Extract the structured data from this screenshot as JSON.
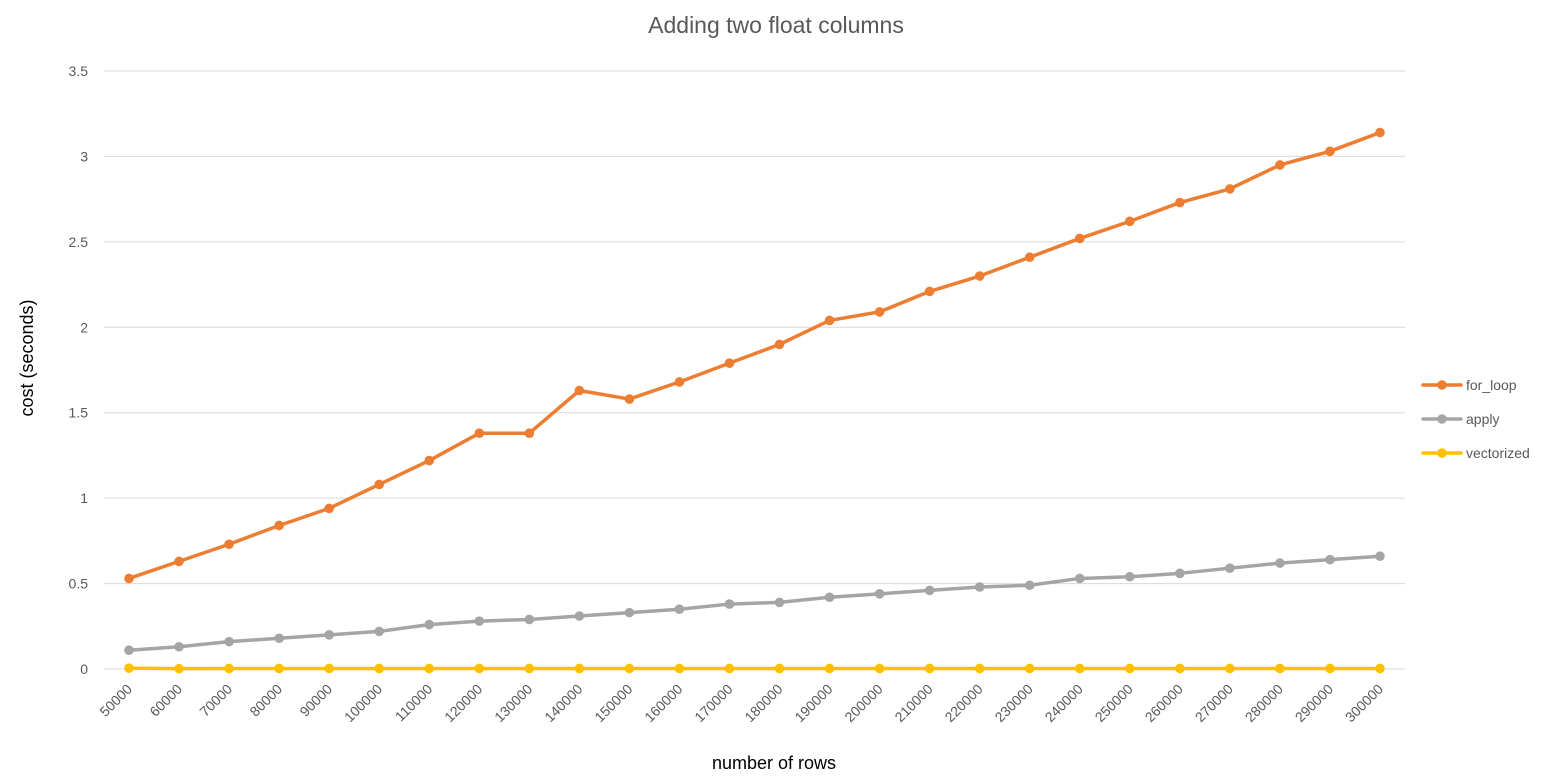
{
  "chart_data": {
    "type": "line",
    "title": "Adding two float columns",
    "xlabel": "number of rows",
    "ylabel": "cost (seconds)",
    "ylim": [
      0,
      3.5
    ],
    "yticks": [
      "0",
      "0.5",
      "1",
      "1.5",
      "2",
      "2.5",
      "3",
      "3.5"
    ],
    "grid": "horizontal",
    "legend_position": "right",
    "categories": [
      "50000",
      "60000",
      "70000",
      "80000",
      "90000",
      "100000",
      "110000",
      "120000",
      "130000",
      "140000",
      "150000",
      "160000",
      "170000",
      "180000",
      "190000",
      "200000",
      "210000",
      "220000",
      "230000",
      "240000",
      "250000",
      "260000",
      "270000",
      "280000",
      "290000",
      "300000"
    ],
    "series": [
      {
        "name": "for_loop",
        "color": "#ED7D31",
        "values": [
          0.53,
          0.63,
          0.73,
          0.84,
          0.94,
          1.08,
          1.22,
          1.38,
          1.38,
          1.63,
          1.58,
          1.68,
          1.79,
          1.9,
          2.04,
          2.09,
          2.21,
          2.3,
          2.41,
          2.52,
          2.62,
          2.73,
          2.81,
          2.95,
          3.03,
          3.14
        ]
      },
      {
        "name": "apply",
        "color": "#A5A5A5",
        "values": [
          0.11,
          0.13,
          0.16,
          0.18,
          0.2,
          0.22,
          0.26,
          0.28,
          0.29,
          0.31,
          0.33,
          0.35,
          0.38,
          0.39,
          0.42,
          0.44,
          0.46,
          0.48,
          0.49,
          0.53,
          0.54,
          0.56,
          0.59,
          0.62,
          0.64,
          0.66
        ]
      },
      {
        "name": "vectorized",
        "color": "#FFC000",
        "values": [
          0.005,
          0.002,
          0.003,
          0.003,
          0.003,
          0.003,
          0.003,
          0.003,
          0.003,
          0.003,
          0.003,
          0.003,
          0.003,
          0.003,
          0.003,
          0.003,
          0.003,
          0.003,
          0.003,
          0.003,
          0.003,
          0.003,
          0.003,
          0.003,
          0.003,
          0.003
        ]
      }
    ]
  }
}
